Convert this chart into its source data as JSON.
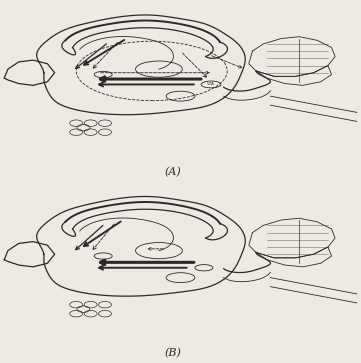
{
  "bg_color": "#ede9e3",
  "line_color": "#2a2a2a",
  "label_A": "(A)",
  "label_B": "(B)",
  "figsize": [
    3.61,
    3.63
  ],
  "dpi": 100
}
